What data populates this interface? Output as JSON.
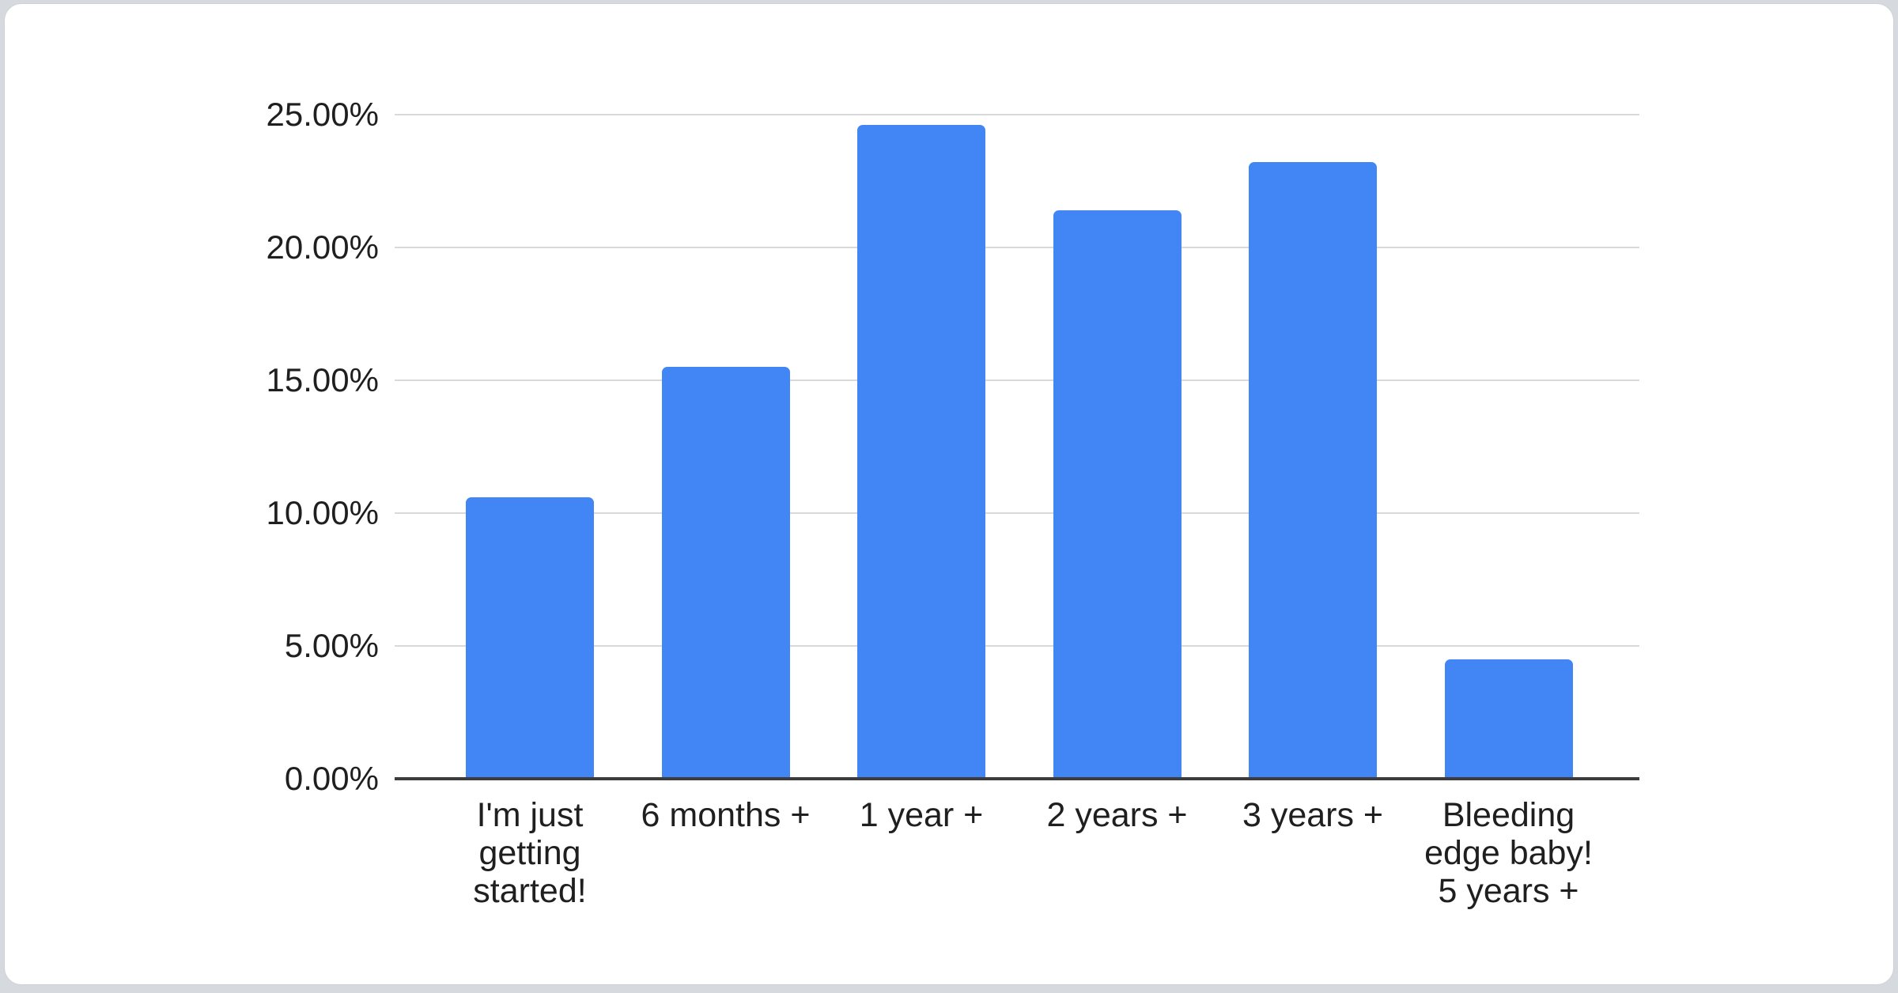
{
  "page": {
    "background_color": "#d6d9dd",
    "card_background_color": "#ffffff"
  },
  "chart_data": {
    "type": "bar",
    "title": "",
    "xlabel": "",
    "ylabel": "",
    "categories": [
      "I'm just\ngetting\nstarted!",
      "6 months +",
      "1 year +",
      "2 years +",
      "3 years +",
      "Bleeding\nedge baby!\n5 years +"
    ],
    "values": [
      10.6,
      15.5,
      24.6,
      21.4,
      23.2,
      4.5
    ],
    "value_unit": "%",
    "y_ticks": [
      "0.00%",
      "5.00%",
      "10.00%",
      "15.00%",
      "20.00%",
      "25.00%"
    ],
    "y_tick_values": [
      0,
      5,
      10,
      15,
      20,
      25
    ],
    "ylim": [
      0,
      25
    ],
    "grid": true,
    "legend": "none",
    "bar_color": "#4285f4",
    "gridline_color": "#d9d9d9",
    "axis_line_color": "#3c3c3c",
    "label_color": "#1f1f1f"
  }
}
